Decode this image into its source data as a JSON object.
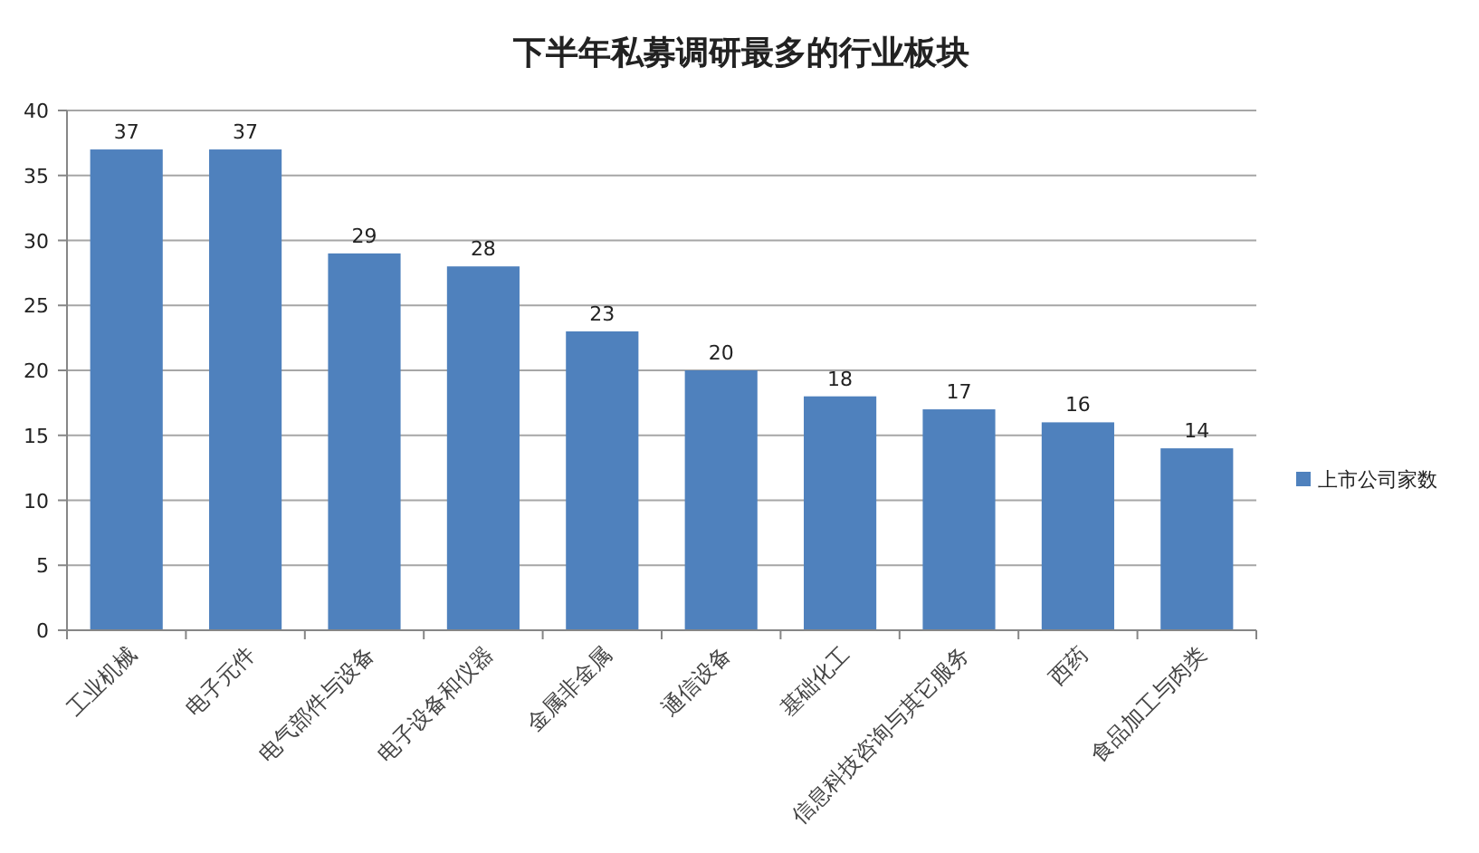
{
  "chart_data": {
    "type": "bar",
    "title": "下半年私募调研最多的行业板块",
    "categories": [
      "工业机械",
      "电子元件",
      "电气部件与设备",
      "电子设备和仪器",
      "金属非金属",
      "通信设备",
      "基础化工",
      "信息科技咨询与其它服务",
      "西药",
      "食品加工与肉类"
    ],
    "series": [
      {
        "name": "上市公司家数",
        "color": "#4f81bd",
        "values": [
          37,
          37,
          29,
          28,
          23,
          20,
          18,
          17,
          16,
          14
        ]
      }
    ],
    "ylim": [
      0,
      40
    ],
    "yticks": [
      0,
      5,
      10,
      15,
      20,
      25,
      30,
      35,
      40
    ],
    "grid": "y",
    "legend": "right",
    "data_labels": true
  }
}
